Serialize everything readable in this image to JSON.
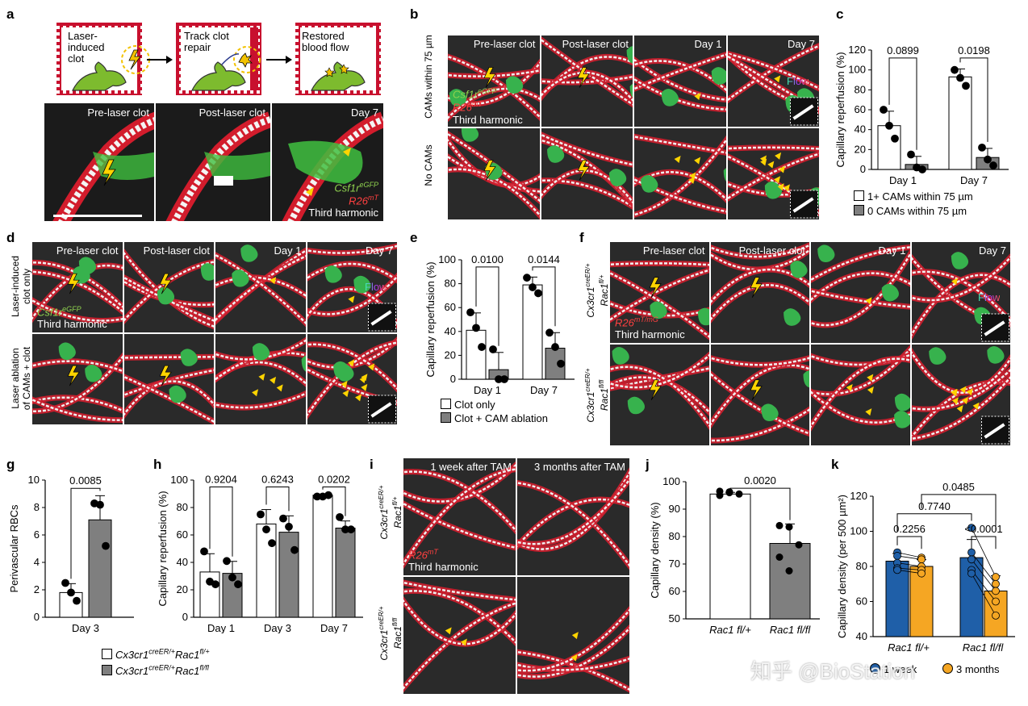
{
  "panel_letters": {
    "a": "a",
    "b": "b",
    "c": "c",
    "d": "d",
    "e": "e",
    "f": "f",
    "g": "g",
    "h": "h",
    "i": "i",
    "j": "j",
    "k": "k"
  },
  "panel_a": {
    "steps": [
      "Laser-\ninduced\nclot",
      "Track clot\nrepair",
      "Restored\nblood flow"
    ],
    "micro_labels": [
      "Pre-laser clot",
      "Post-laser clot",
      "Day 7"
    ],
    "legend": {
      "csf": "Csf1r",
      "csf_sup": "eGFP",
      "r26": "R26",
      "r26_sup": "mT",
      "third": "Third harmonic"
    }
  },
  "panel_b": {
    "cols": [
      "Pre-laser clot",
      "Post-laser clot",
      "Day 1",
      "Day 7"
    ],
    "rows": [
      "CAMs within 75 µm",
      "No CAMs"
    ],
    "legend": {
      "csf": "Csf1r",
      "csf_sup": "eGFP",
      "r26": "R26",
      "r26_sup": "mT",
      "third": "Third harmonic"
    },
    "flow": "Flow"
  },
  "panel_d": {
    "cols": [
      "Pre-laser clot",
      "Post-laser clot",
      "Day 1",
      "Day 7"
    ],
    "rows": [
      "Laser-induced\nclot only",
      "Laser ablation\nof CAMs + clot"
    ],
    "legend": {
      "csf": "Csf1r",
      "csf_sup": "eGFP",
      "third": "Third harmonic"
    },
    "flow": "Flow"
  },
  "panel_f": {
    "cols": [
      "Pre-laser clot",
      "Post-laser clot",
      "Day 1",
      "Day 7"
    ],
    "rows": [
      {
        "g1": "Cx3cr1",
        "s1": "creER/+",
        "g2": "Rac1",
        "s2": "fl/+"
      },
      {
        "g1": "Cx3cr1",
        "s1": "creER/+",
        "g2": "Rac1",
        "s2": "fl/fl"
      }
    ],
    "legend": {
      "r26": "R26",
      "r26_sup": "mT/mG",
      "third": "Third harmonic"
    },
    "flow": "Flow"
  },
  "panel_i": {
    "cols": [
      "1 week after TAM",
      "3 months after TAM"
    ],
    "rows": [
      {
        "g1": "Cx3cr1",
        "s1": "creER/+",
        "g2": "Rac1",
        "s2": "fl/+"
      },
      {
        "g1": "Cx3cr1",
        "s1": "creER/+",
        "g2": "Rac1",
        "s2": "fl/fl"
      }
    ],
    "legend": {
      "r26": "R26",
      "r26_sup": "mT",
      "third": "Third harmonic"
    }
  },
  "legend_c": [
    "1+ CAMs within 75 µm",
    "0 CAMs within 75 µm"
  ],
  "legend_e": [
    "Clot only",
    "Clot + CAM ablation"
  ],
  "legend_h": [
    {
      "g1": "Cx3cr1",
      "s1": "creER/+",
      "g2": "Rac1",
      "s2": "fl/+"
    },
    {
      "g1": "Cx3cr1",
      "s1": "creER/+",
      "g2": "Rac1",
      "s2": "fl/fl"
    }
  ],
  "legend_k": [
    "1 week",
    "3 months"
  ],
  "watermark": "知乎 @BioStation",
  "colors": {
    "white_bar": "#ffffff",
    "gray_bar": "#7f7f7f",
    "blue": "#1f5fa8",
    "orange": "#f5a623"
  },
  "chart_data": [
    {
      "id": "c",
      "type": "bar",
      "categories": [
        "Day 1",
        "Day 7"
      ],
      "ylabel": "Capillary reperfusion (%)",
      "ylim": [
        0,
        120
      ],
      "yticks": [
        0,
        20,
        40,
        60,
        80,
        100,
        120
      ],
      "series": [
        {
          "name": "1+ CAMs within 75 µm",
          "values": [
            44,
            93
          ],
          "points": [
            [
              60,
              44,
              31
            ],
            [
              100,
              92,
              84
            ]
          ]
        },
        {
          "name": "0 CAMs within 75 µm",
          "values": [
            5,
            12
          ],
          "points": [
            [
              15,
              2,
              0
            ],
            [
              22,
              10,
              4
            ]
          ]
        }
      ],
      "pvalues": [
        "0.0899",
        "0.0198"
      ]
    },
    {
      "id": "e",
      "type": "bar",
      "categories": [
        "Day 1",
        "Day 7"
      ],
      "ylabel": "Capillary reperfusion (%)",
      "ylim": [
        0,
        100
      ],
      "yticks": [
        0,
        20,
        40,
        60,
        80,
        100
      ],
      "series": [
        {
          "name": "Clot only",
          "values": [
            41,
            79
          ],
          "points": [
            [
              56,
              43,
              27
            ],
            [
              85,
              77,
              72
            ]
          ]
        },
        {
          "name": "Clot + CAM ablation",
          "values": [
            8,
            26
          ],
          "points": [
            [
              25,
              0,
              0
            ],
            [
              39,
              27,
              13
            ]
          ]
        }
      ],
      "pvalues": [
        "0.0100",
        "0.0144"
      ]
    },
    {
      "id": "g",
      "type": "bar",
      "categories": [
        "Day 3"
      ],
      "ylabel": "Perivascular RBCs",
      "ylim": [
        0,
        10
      ],
      "yticks": [
        0,
        2,
        4,
        6,
        8,
        10
      ],
      "series": [
        {
          "name": "Rac1 fl/+",
          "values": [
            1.8
          ],
          "points": [
            [
              2.5,
              1.8,
              1.2
            ]
          ]
        },
        {
          "name": "Rac1 fl/fl",
          "values": [
            7.1
          ],
          "points": [
            [
              8.3,
              8.2,
              5.2
            ]
          ]
        }
      ],
      "pvalues": [
        "0.0085"
      ]
    },
    {
      "id": "h",
      "type": "bar",
      "categories": [
        "Day 1",
        "Day 3",
        "Day 7"
      ],
      "ylabel": "Capillary reperfusion (%)",
      "ylim": [
        0,
        100
      ],
      "yticks": [
        0,
        20,
        40,
        60,
        80,
        100
      ],
      "series": [
        {
          "name": "Rac1 fl/+",
          "values": [
            33,
            68,
            89
          ],
          "points": [
            [
              48,
              26,
              24
            ],
            [
              75,
              64,
              54
            ],
            [
              88,
              88,
              89
            ]
          ]
        },
        {
          "name": "Rac1 fl/fl",
          "values": [
            32,
            62,
            65
          ],
          "points": [
            [
              41,
              29,
              24
            ],
            [
              72,
              66,
              49
            ],
            [
              73,
              64,
              64
            ]
          ]
        }
      ],
      "pvalues": [
        "0.9204",
        "0.6243",
        "0.0202"
      ]
    },
    {
      "id": "j",
      "type": "bar",
      "categories": [
        "Rac1 fl/+",
        "Rac1 fl/fl"
      ],
      "ylabel": "Capillary density (%)",
      "ylim": [
        50,
        100
      ],
      "yticks": [
        50,
        60,
        70,
        80,
        90,
        100
      ],
      "values": [
        95.5,
        77.5
      ],
      "points": [
        [
          96.5,
          96,
          95.5,
          95,
          96.3
        ],
        [
          84,
          83.5,
          77,
          72.5,
          67.5
        ]
      ],
      "pvalues": [
        "0.0020"
      ]
    },
    {
      "id": "k",
      "type": "bar",
      "categories": [
        "Rac1 fl/+",
        "Rac1 fl/fl"
      ],
      "ylabel": "Capillary density (per 500 µm²)",
      "ylim": [
        40,
        120
      ],
      "yticks": [
        40,
        60,
        80,
        100,
        120
      ],
      "series": [
        {
          "name": "1 week",
          "values": [
            83,
            85
          ],
          "points": [
            [
              88,
              86,
              82,
              79,
              78
            ],
            [
              102,
              88,
              84,
              78,
              76
            ]
          ]
        },
        {
          "name": "3 months",
          "values": [
            80,
            66
          ],
          "points": [
            [
              85,
              84,
              80,
              78,
              76
            ],
            [
              74,
              70,
              66,
              60,
              52
            ]
          ]
        }
      ],
      "pvalues": [
        "0.2256",
        "<0.0001",
        "0.7740",
        "0.0485"
      ]
    }
  ]
}
